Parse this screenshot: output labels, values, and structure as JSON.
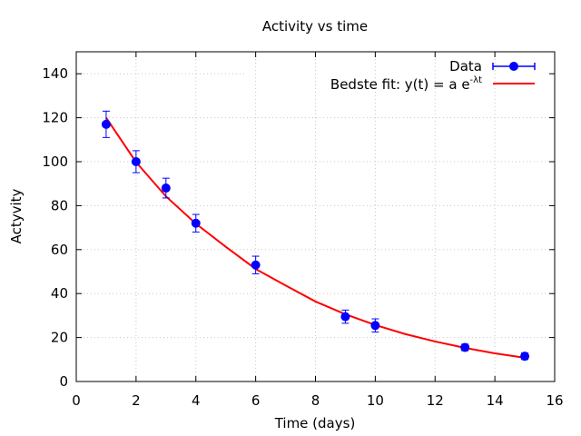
{
  "chart_data": {
    "type": "scatter",
    "title": "Activity vs time",
    "xlabel": "Time (days)",
    "ylabel": "Actyvity",
    "xlim": [
      0,
      16
    ],
    "ylim": [
      0,
      150
    ],
    "xticks": [
      0,
      2,
      4,
      6,
      8,
      10,
      12,
      14,
      16
    ],
    "yticks": [
      0,
      20,
      40,
      60,
      80,
      100,
      120,
      140
    ],
    "grid": true,
    "legend_position": "top-right",
    "series": [
      {
        "name": "Data",
        "kind": "points-with-errorbars",
        "color": "#0000ff",
        "x": [
          1,
          2,
          3,
          4,
          6,
          9,
          10,
          13,
          15
        ],
        "y": [
          117,
          100,
          88,
          72,
          53,
          29.5,
          25.5,
          15.5,
          11.5
        ],
        "yerr": [
          6,
          5,
          4.5,
          4,
          4,
          3,
          3,
          1.5,
          1.5
        ]
      },
      {
        "name": "Bedste fit: y(t) = a e",
        "name_superscript": "-λt",
        "kind": "line",
        "color": "#ff0000",
        "x": [
          1,
          2,
          3,
          4,
          5,
          6,
          7,
          8,
          9,
          10,
          11,
          12,
          13,
          14,
          15
        ],
        "y": [
          120,
          99.8,
          84.2,
          71.8,
          61.3,
          51.2,
          43.7,
          36.4,
          30.6,
          25.7,
          21.6,
          18.2,
          15.3,
          12.8,
          10.8
        ]
      }
    ]
  }
}
